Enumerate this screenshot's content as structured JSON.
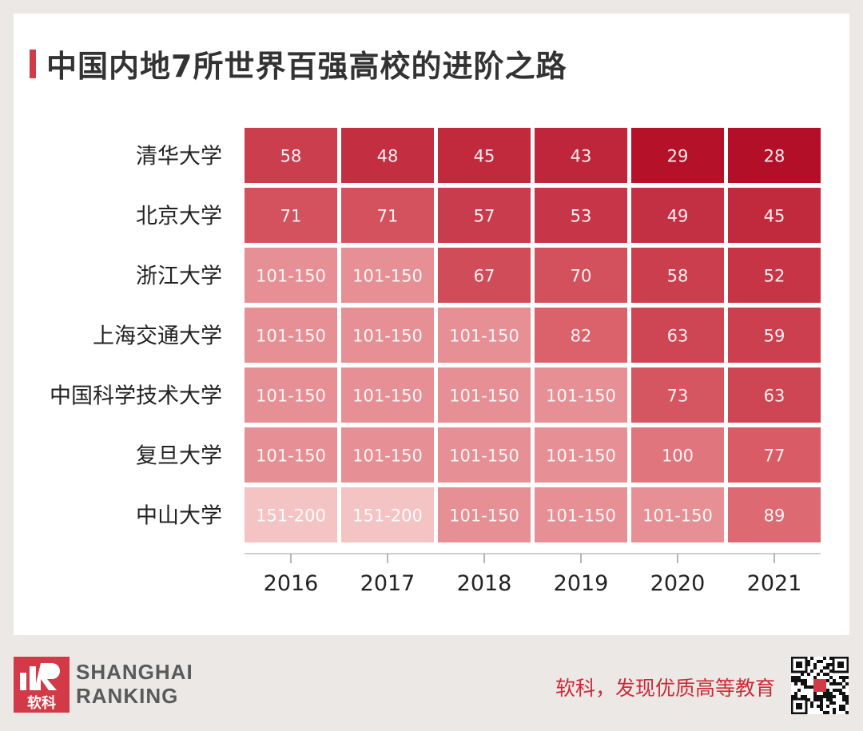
{
  "title": "中国内地7所世界百强高校的进阶之路",
  "brand": {
    "line1": "SHANGHAI",
    "line2": "RANKING",
    "logo_text": "软科"
  },
  "slogan": "软科，发现优质高等教育",
  "qr_icon": "qr-code-icon",
  "colors": {
    "accent": "#d23a47",
    "strong": "#b40f28",
    "light": "#f5c8c8"
  },
  "chart_data": {
    "type": "heatmap",
    "title": "中国内地7所世界百强高校的进阶之路",
    "x": [
      "2016",
      "2017",
      "2018",
      "2019",
      "2020",
      "2021"
    ],
    "y": [
      "清华大学",
      "北京大学",
      "浙江大学",
      "上海交通大学",
      "中国科学技术大学",
      "复旦大学",
      "中山大学"
    ],
    "values": [
      [
        "58",
        "48",
        "45",
        "43",
        "29",
        "28"
      ],
      [
        "71",
        "71",
        "57",
        "53",
        "49",
        "45"
      ],
      [
        "101-150",
        "101-150",
        "67",
        "70",
        "58",
        "52"
      ],
      [
        "101-150",
        "101-150",
        "101-150",
        "82",
        "63",
        "59"
      ],
      [
        "101-150",
        "101-150",
        "101-150",
        "101-150",
        "73",
        "63"
      ],
      [
        "101-150",
        "101-150",
        "101-150",
        "101-150",
        "100",
        "77"
      ],
      [
        "151-200",
        "151-200",
        "101-150",
        "101-150",
        "101-150",
        "89"
      ]
    ],
    "grid": false,
    "legend": "none"
  }
}
